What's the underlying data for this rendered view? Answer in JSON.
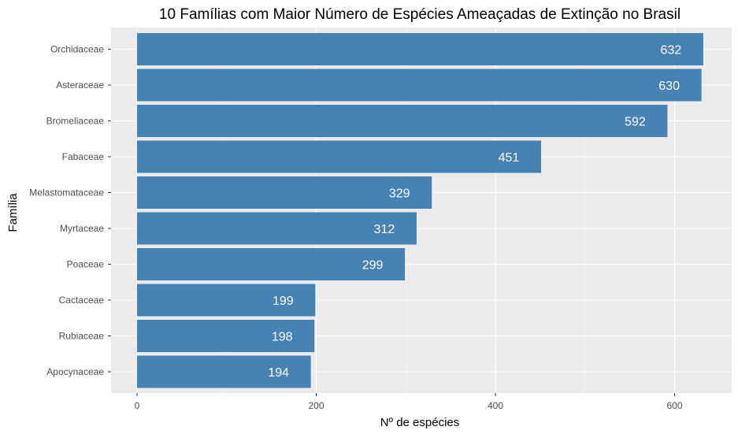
{
  "chart_data": {
    "type": "bar",
    "orientation": "horizontal",
    "title": "10 Famílias com Maior Número de Espécies Ameaçadas de Extinção no Brasil",
    "xlabel": "Nº de espécies",
    "ylabel": "Família",
    "categories": [
      "Orchidaceae",
      "Asteraceae",
      "Bromeliaceae",
      "Fabaceae",
      "Melastomataceae",
      "Myrtaceae",
      "Poaceae",
      "Cactaceae",
      "Rubiaceae",
      "Apocynaceae"
    ],
    "values": [
      632,
      630,
      592,
      451,
      329,
      312,
      299,
      199,
      198,
      194
    ],
    "xlim": [
      0,
      665
    ],
    "xticks": [
      0,
      200,
      400,
      600
    ],
    "grid": true,
    "colors": {
      "bar": "#4682B4",
      "panel": "#EBEBEB",
      "grid_major": "#FFFFFF",
      "grid_minor": "#F7F7F7",
      "data_label": "#FFFFFF"
    }
  }
}
